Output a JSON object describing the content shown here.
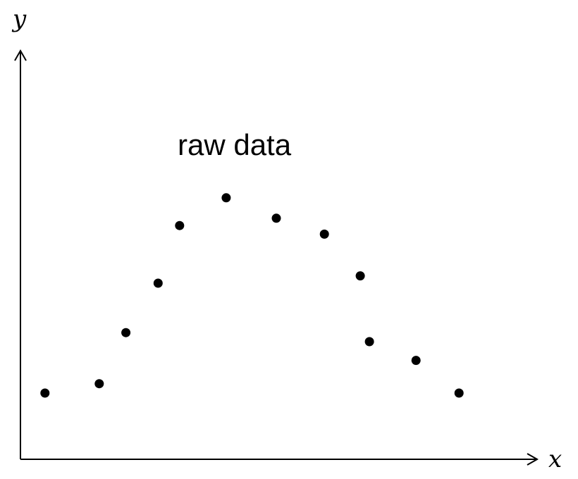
{
  "chart_data": {
    "type": "scatter",
    "xlabel": "x",
    "ylabel": "y",
    "annotation": "raw data",
    "grid": false,
    "legend": "none",
    "xlim": [
      0,
      100
    ],
    "ylim": [
      0,
      100
    ],
    "marker_color": "#000000",
    "series": [
      {
        "points": [
          {
            "x": 4.8,
            "y": 16.2
          },
          {
            "x": 15.4,
            "y": 18.5
          },
          {
            "x": 20.6,
            "y": 31.0
          },
          {
            "x": 26.9,
            "y": 43.1
          },
          {
            "x": 31.1,
            "y": 57.2
          },
          {
            "x": 40.2,
            "y": 64.0
          },
          {
            "x": 50.0,
            "y": 59.0
          },
          {
            "x": 59.4,
            "y": 55.1
          },
          {
            "x": 66.4,
            "y": 44.9
          },
          {
            "x": 68.2,
            "y": 28.8
          },
          {
            "x": 77.3,
            "y": 24.2
          },
          {
            "x": 85.7,
            "y": 16.2
          }
        ]
      }
    ]
  }
}
